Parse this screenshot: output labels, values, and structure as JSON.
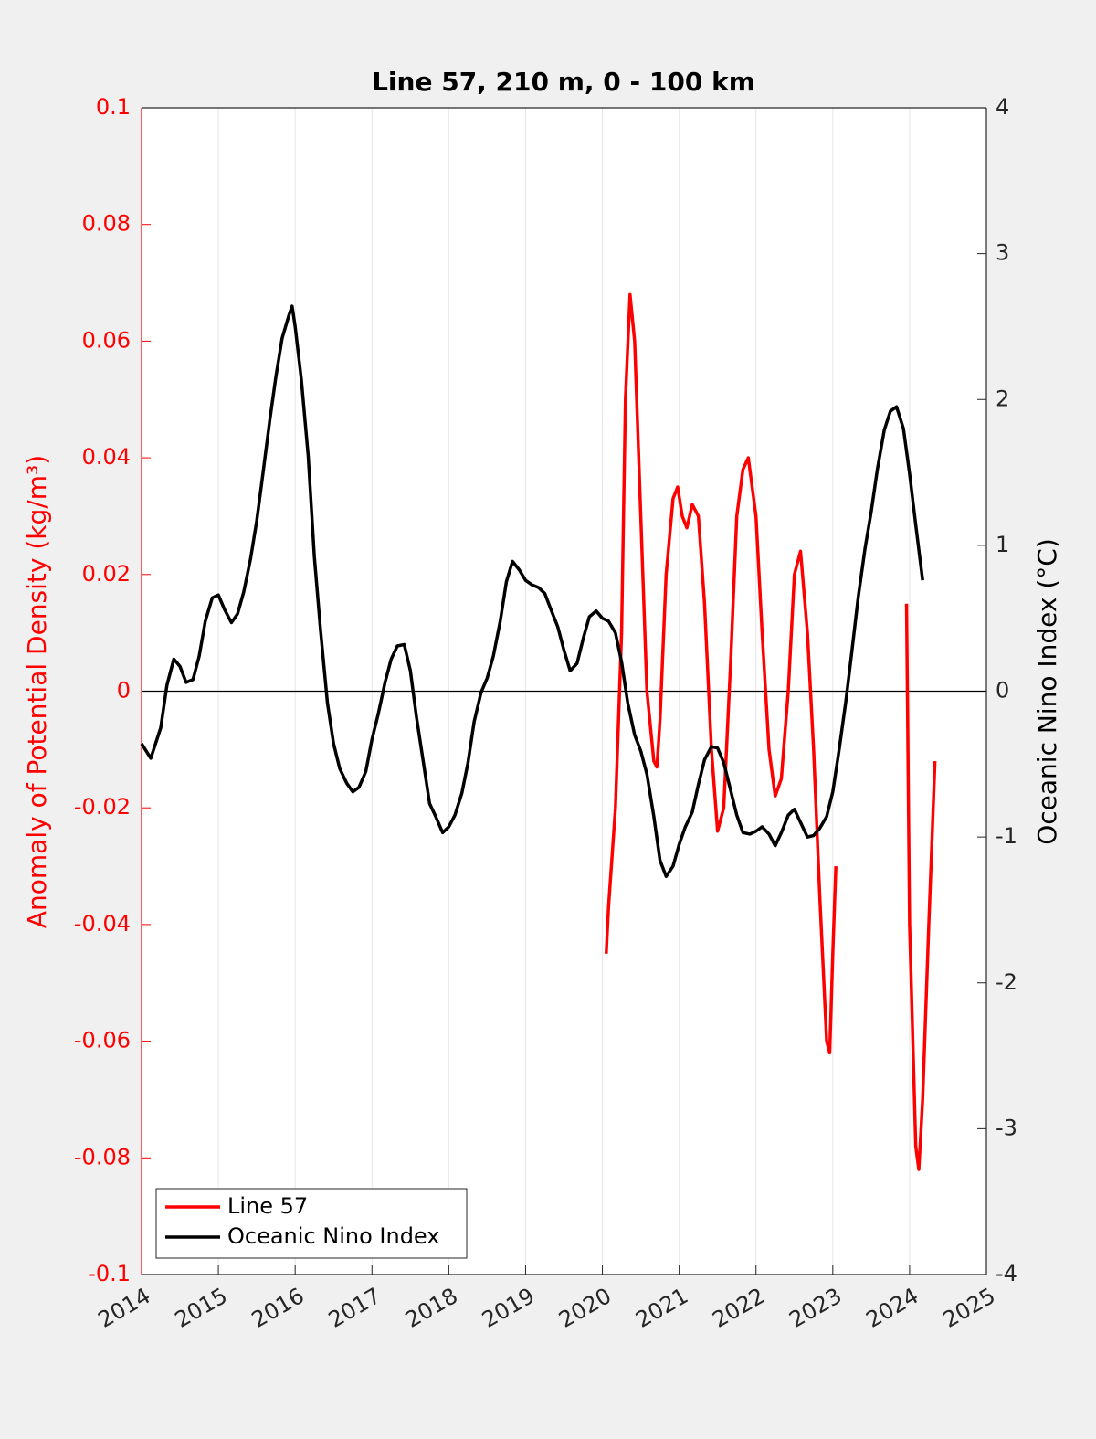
{
  "chart_data": {
    "type": "line",
    "title": "Line 57, 210 m, 0 - 100 km",
    "ylabel": "Anomaly of Potential Density (kg/m³)",
    "y2label": "Oceanic Nino Index (°C)",
    "xlim": [
      2014,
      2025
    ],
    "xticks": [
      2014,
      2015,
      2016,
      2017,
      2018,
      2019,
      2020,
      2021,
      2022,
      2023,
      2024,
      2025
    ],
    "ylim": [
      -0.1,
      0.1
    ],
    "yticks": [
      -0.1,
      -0.08,
      -0.06,
      -0.04,
      -0.02,
      0,
      0.02,
      0.04,
      0.06,
      0.08,
      0.1
    ],
    "y2lim": [
      -4,
      4
    ],
    "y2ticks": [
      -4,
      -3,
      -2,
      -1,
      0,
      1,
      2,
      3,
      4
    ],
    "hlines": [
      0
    ],
    "grid": true,
    "legend": "lower left",
    "series": [
      {
        "name": "Line 57",
        "color": "#ff0000",
        "axis": "y",
        "x": [
          2020.05,
          2020.08,
          2020.17,
          2020.25,
          2020.3,
          2020.36,
          2020.42,
          2020.5,
          2020.58,
          2020.67,
          2020.71,
          2020.75,
          2020.83,
          2020.92,
          2020.98,
          2021.04,
          2021.1,
          2021.17,
          2021.25,
          2021.33,
          2021.42,
          2021.5,
          2021.58,
          2021.67,
          2021.75,
          2021.83,
          2021.9,
          2022.0,
          2022.08,
          2022.17,
          2022.25,
          2022.33,
          2022.42,
          2022.5,
          2022.58,
          2022.67,
          2022.75,
          2022.83,
          2022.92,
          2022.96,
          2023.0,
          2023.04,
          2023.5,
          2023.96,
          2024.0,
          2024.08,
          2024.12,
          2024.17,
          2024.25,
          2024.33
        ],
        "values": [
          -0.045,
          -0.037,
          -0.02,
          0.01,
          0.05,
          0.068,
          0.06,
          0.03,
          0.0,
          -0.012,
          -0.013,
          -0.005,
          0.02,
          0.033,
          0.035,
          0.03,
          0.028,
          0.032,
          0.03,
          0.015,
          -0.01,
          -0.024,
          -0.02,
          0.005,
          0.03,
          0.038,
          0.04,
          0.03,
          0.01,
          -0.01,
          -0.018,
          -0.015,
          0.0,
          0.02,
          0.024,
          0.01,
          -0.01,
          -0.035,
          -0.06,
          -0.062,
          -0.045,
          -0.03,
          null,
          0.015,
          -0.04,
          -0.078,
          -0.082,
          -0.07,
          -0.04,
          -0.012
        ]
      },
      {
        "name": "Oceanic Nino Index",
        "color": "#000000",
        "axis": "y2",
        "x": [
          2014.0,
          2014.12,
          2014.25,
          2014.33,
          2014.42,
          2014.5,
          2014.58,
          2014.67,
          2014.75,
          2014.83,
          2014.92,
          2015.0,
          2015.08,
          2015.17,
          2015.25,
          2015.33,
          2015.42,
          2015.5,
          2015.58,
          2015.67,
          2015.75,
          2015.83,
          2015.92,
          2015.96,
          2016.0,
          2016.08,
          2016.17,
          2016.25,
          2016.33,
          2016.42,
          2016.5,
          2016.58,
          2016.67,
          2016.75,
          2016.83,
          2016.92,
          2017.0,
          2017.08,
          2017.17,
          2017.25,
          2017.33,
          2017.42,
          2017.5,
          2017.58,
          2017.67,
          2017.75,
          2017.83,
          2017.92,
          2018.0,
          2018.08,
          2018.17,
          2018.25,
          2018.33,
          2018.42,
          2018.5,
          2018.58,
          2018.67,
          2018.75,
          2018.83,
          2018.92,
          2019.0,
          2019.08,
          2019.17,
          2019.25,
          2019.33,
          2019.42,
          2019.5,
          2019.58,
          2019.67,
          2019.75,
          2019.83,
          2019.92,
          2020.0,
          2020.08,
          2020.17,
          2020.25,
          2020.33,
          2020.42,
          2020.5,
          2020.58,
          2020.67,
          2020.75,
          2020.83,
          2020.92,
          2021.0,
          2021.08,
          2021.17,
          2021.25,
          2021.33,
          2021.42,
          2021.5,
          2021.58,
          2021.67,
          2021.75,
          2021.83,
          2021.92,
          2022.0,
          2022.08,
          2022.17,
          2022.25,
          2022.33,
          2022.42,
          2022.5,
          2022.58,
          2022.67,
          2022.75,
          2022.83,
          2022.92,
          2023.0,
          2023.08,
          2023.17,
          2023.25,
          2023.33,
          2023.42,
          2023.5,
          2023.58,
          2023.67,
          2023.75,
          2023.83,
          2023.92,
          2024.0,
          2024.08,
          2024.17
        ],
        "values": [
          -0.36,
          -0.46,
          -0.25,
          0.04,
          0.22,
          0.17,
          0.06,
          0.08,
          0.24,
          0.48,
          0.64,
          0.66,
          0.56,
          0.47,
          0.53,
          0.68,
          0.91,
          1.17,
          1.49,
          1.86,
          2.16,
          2.42,
          2.58,
          2.64,
          2.5,
          2.14,
          1.61,
          0.92,
          0.42,
          -0.08,
          -0.36,
          -0.53,
          -0.63,
          -0.69,
          -0.66,
          -0.55,
          -0.33,
          -0.16,
          0.06,
          0.22,
          0.31,
          0.32,
          0.14,
          -0.18,
          -0.49,
          -0.77,
          -0.86,
          -0.97,
          -0.93,
          -0.85,
          -0.7,
          -0.49,
          -0.21,
          -0.01,
          0.09,
          0.24,
          0.48,
          0.75,
          0.89,
          0.83,
          0.76,
          0.73,
          0.71,
          0.67,
          0.56,
          0.44,
          0.28,
          0.14,
          0.19,
          0.36,
          0.51,
          0.55,
          0.5,
          0.48,
          0.4,
          0.2,
          -0.08,
          -0.3,
          -0.41,
          -0.57,
          -0.86,
          -1.16,
          -1.27,
          -1.2,
          -1.05,
          -0.93,
          -0.83,
          -0.64,
          -0.47,
          -0.38,
          -0.39,
          -0.49,
          -0.68,
          -0.85,
          -0.97,
          -0.98,
          -0.96,
          -0.93,
          -0.98,
          -1.06,
          -0.97,
          -0.85,
          -0.81,
          -0.9,
          -1.0,
          -0.99,
          -0.94,
          -0.86,
          -0.69,
          -0.41,
          -0.07,
          0.28,
          0.64,
          0.98,
          1.23,
          1.52,
          1.79,
          1.92,
          1.95,
          1.8,
          1.49,
          1.14,
          0.76
        ]
      }
    ]
  }
}
